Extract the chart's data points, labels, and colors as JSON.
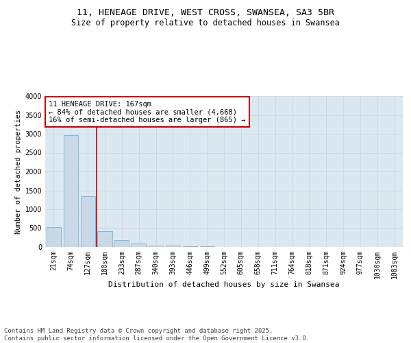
{
  "title": "11, HENEAGE DRIVE, WEST CROSS, SWANSEA, SA3 5BR",
  "subtitle": "Size of property relative to detached houses in Swansea",
  "xlabel": "Distribution of detached houses by size in Swansea",
  "ylabel": "Number of detached properties",
  "categories": [
    "21sqm",
    "74sqm",
    "127sqm",
    "180sqm",
    "233sqm",
    "287sqm",
    "340sqm",
    "393sqm",
    "446sqm",
    "499sqm",
    "552sqm",
    "605sqm",
    "658sqm",
    "711sqm",
    "764sqm",
    "818sqm",
    "871sqm",
    "924sqm",
    "977sqm",
    "1030sqm",
    "1083sqm"
  ],
  "values": [
    530,
    2960,
    1350,
    420,
    175,
    95,
    45,
    30,
    20,
    10,
    3,
    0,
    0,
    0,
    0,
    0,
    0,
    0,
    0,
    0,
    0
  ],
  "bar_color": "#c9d9e8",
  "bar_edge_color": "#7bafd4",
  "vline_color": "#cc0000",
  "vline_pos": 2.5,
  "annotation_text": "11 HENEAGE DRIVE: 167sqm\n← 84% of detached houses are smaller (4,668)\n16% of semi-detached houses are larger (865) →",
  "annotation_box_color": "#cc0000",
  "annotation_fontsize": 7.5,
  "grid_color": "#c8d8e8",
  "background_color": "#dce8f0",
  "footer_text": "Contains HM Land Registry data © Crown copyright and database right 2025.\nContains public sector information licensed under the Open Government Licence v3.0.",
  "ylim": [
    0,
    4000
  ],
  "yticks": [
    0,
    500,
    1000,
    1500,
    2000,
    2500,
    3000,
    3500,
    4000
  ],
  "title_fontsize": 9.5,
  "subtitle_fontsize": 8.5,
  "xlabel_fontsize": 8,
  "ylabel_fontsize": 7.5,
  "tick_fontsize": 7,
  "footer_fontsize": 6.5
}
